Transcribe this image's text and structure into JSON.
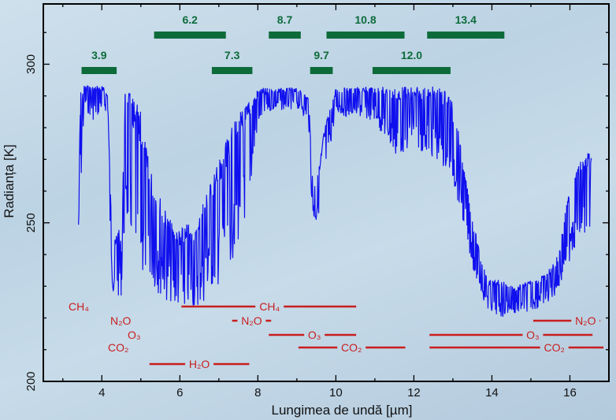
{
  "chart_data": {
    "type": "line",
    "xlabel": "Lungimea de undă [µm]",
    "ylabel": "Radianța [K]",
    "xlim": [
      2.5,
      17
    ],
    "ylim": [
      200,
      319
    ],
    "xticks": [
      4,
      6,
      8,
      10,
      12,
      14,
      16
    ],
    "yticks": [
      200,
      250,
      300
    ],
    "grid": false,
    "series_color": "#1010ee",
    "spectrum_envelope": {
      "columns": [
        "wavelength_um",
        "upper_K",
        "lower_K"
      ],
      "points": [
        [
          3.4,
          250,
          247
        ],
        [
          3.45,
          292,
          255
        ],
        [
          3.55,
          293.5,
          286
        ],
        [
          3.8,
          293.5,
          282
        ],
        [
          4.0,
          293.5,
          285
        ],
        [
          4.15,
          291,
          285
        ],
        [
          4.22,
          260,
          240
        ],
        [
          4.3,
          242,
          225
        ],
        [
          4.4,
          250,
          226
        ],
        [
          4.5,
          244,
          227
        ],
        [
          4.6,
          293,
          250
        ],
        [
          4.8,
          290,
          240
        ],
        [
          5.0,
          285,
          232
        ],
        [
          5.2,
          270,
          232
        ],
        [
          5.4,
          262,
          228
        ],
        [
          5.6,
          255,
          226
        ],
        [
          5.8,
          250,
          224
        ],
        [
          6.0,
          248,
          222
        ],
        [
          6.2,
          250,
          222
        ],
        [
          6.4,
          248,
          223
        ],
        [
          6.6,
          258,
          224
        ],
        [
          6.8,
          264,
          228
        ],
        [
          7.0,
          270,
          230
        ],
        [
          7.2,
          276,
          234
        ],
        [
          7.4,
          282,
          240
        ],
        [
          7.6,
          286,
          246
        ],
        [
          7.8,
          290,
          258
        ],
        [
          8.0,
          292.5,
          280
        ],
        [
          8.3,
          292.5,
          285
        ],
        [
          9.0,
          292.5,
          286
        ],
        [
          9.3,
          290,
          282
        ],
        [
          9.4,
          265,
          250
        ],
        [
          9.5,
          262,
          249
        ],
        [
          9.7,
          280,
          262
        ],
        [
          10.0,
          292.5,
          284
        ],
        [
          11.0,
          293,
          282
        ],
        [
          11.5,
          293,
          270
        ],
        [
          12.0,
          293,
          274
        ],
        [
          12.5,
          293,
          270
        ],
        [
          12.9,
          292,
          265
        ],
        [
          13.1,
          282,
          258
        ],
        [
          13.3,
          266,
          248
        ],
        [
          13.5,
          252,
          236
        ],
        [
          13.7,
          240,
          228
        ],
        [
          13.9,
          232,
          222
        ],
        [
          14.2,
          232,
          220
        ],
        [
          14.6,
          230,
          221
        ],
        [
          15.0,
          232,
          222
        ],
        [
          15.4,
          234,
          224
        ],
        [
          15.7,
          240,
          228
        ],
        [
          16.0,
          262,
          238
        ],
        [
          16.2,
          268,
          244
        ],
        [
          16.4,
          272,
          245
        ],
        [
          16.56,
          272,
          250
        ]
      ]
    },
    "green_bands": [
      {
        "label": "3.9",
        "from": 3.48,
        "to": 4.38,
        "row": 2
      },
      {
        "label": "6.2",
        "from": 5.34,
        "to": 7.18,
        "row": 1
      },
      {
        "label": "7.3",
        "from": 6.82,
        "to": 7.86,
        "row": 2
      },
      {
        "label": "8.7",
        "from": 8.28,
        "to": 9.1,
        "row": 1
      },
      {
        "label": "9.7",
        "from": 9.34,
        "to": 9.92,
        "row": 2
      },
      {
        "label": "10.8",
        "from": 9.76,
        "to": 11.76,
        "row": 1
      },
      {
        "label": "12.0",
        "from": 10.94,
        "to": 12.94,
        "row": 2
      },
      {
        "label": "13.4",
        "from": 12.34,
        "to": 14.32,
        "row": 1
      }
    ],
    "band_color": "#0d6b3a",
    "absorber_color": "#c81e1e",
    "absorber_labels_left": [
      "CH₄",
      "N₂O",
      "O₃",
      "CO₂"
    ],
    "absorbers": [
      {
        "label": "CH₄",
        "from": 6.04,
        "to": 10.52,
        "label_at": 8.3,
        "row": 0
      },
      {
        "label": "N₂O",
        "from": 7.34,
        "to": 8.34,
        "label_at": 7.84,
        "row": 1
      },
      {
        "label": "O₃",
        "from": 8.28,
        "to": 10.52,
        "label_at": 9.45,
        "row": 2
      },
      {
        "label": "CO₂",
        "from": 9.04,
        "to": 11.78,
        "label_at": 10.4,
        "row": 3
      },
      {
        "label": "H₂O",
        "from": 5.22,
        "to": 7.78,
        "label_at": 6.5,
        "row": 4
      },
      {
        "label": "N₂O",
        "from": 15.06,
        "to": 16.78,
        "label_at": 16.4,
        "row": 1
      },
      {
        "label": "O₃",
        "from": 12.4,
        "to": 16.58,
        "label_at": 15.05,
        "row": 2
      },
      {
        "label": "CO₂",
        "from": 12.4,
        "to": 16.86,
        "label_at": 15.6,
        "row": 3
      }
    ]
  }
}
